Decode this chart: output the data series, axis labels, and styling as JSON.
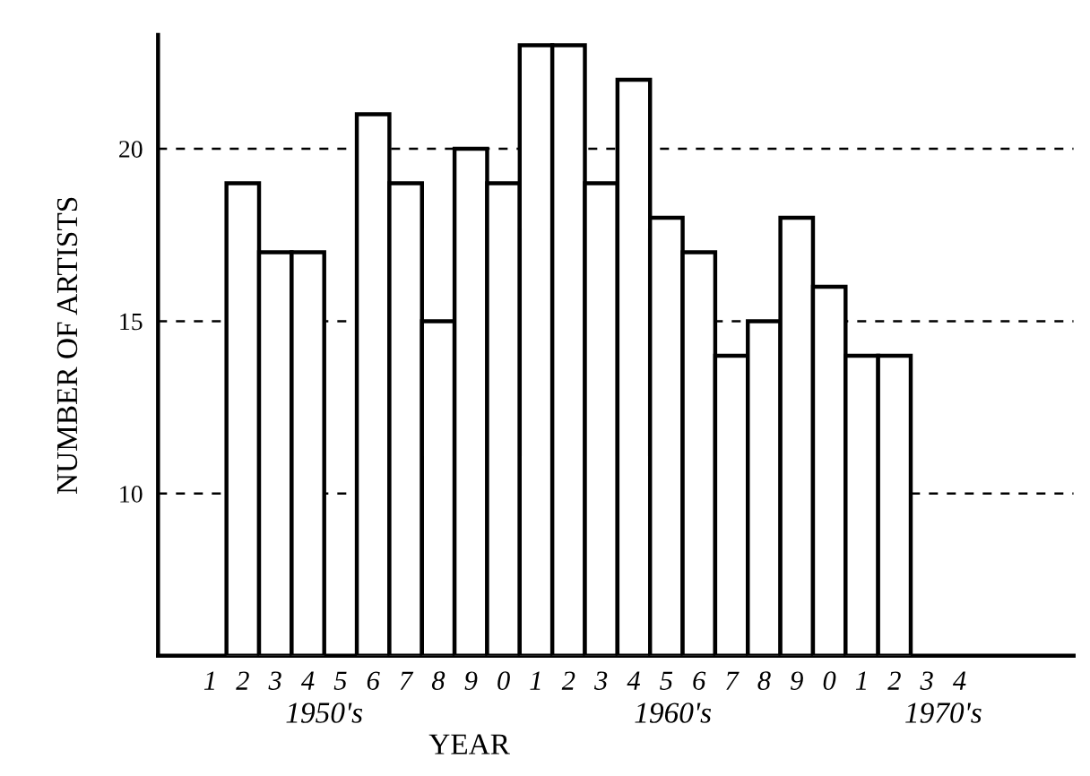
{
  "chart_data": {
    "type": "bar",
    "xlabel": "YEAR",
    "ylabel": "NUMBER OF ARTISTS",
    "categories": [
      "1",
      "2",
      "3",
      "4",
      "5",
      "6",
      "7",
      "8",
      "9",
      "0",
      "1",
      "2",
      "3",
      "4",
      "5",
      "6",
      "7",
      "8",
      "9",
      "0",
      "1",
      "2",
      "3",
      "4"
    ],
    "values": [
      null,
      19,
      17,
      17,
      null,
      21,
      19,
      15,
      20,
      19,
      23,
      23,
      19,
      22,
      18,
      17,
      14,
      15,
      18,
      16,
      14,
      14,
      null,
      null
    ],
    "color": "#ffffff",
    "ylim": [
      5.3,
      23.3
    ],
    "yticks": [
      10,
      15,
      20
    ],
    "grid": "y",
    "annotations": [
      "1950's",
      "1960's",
      "1970's"
    ]
  }
}
